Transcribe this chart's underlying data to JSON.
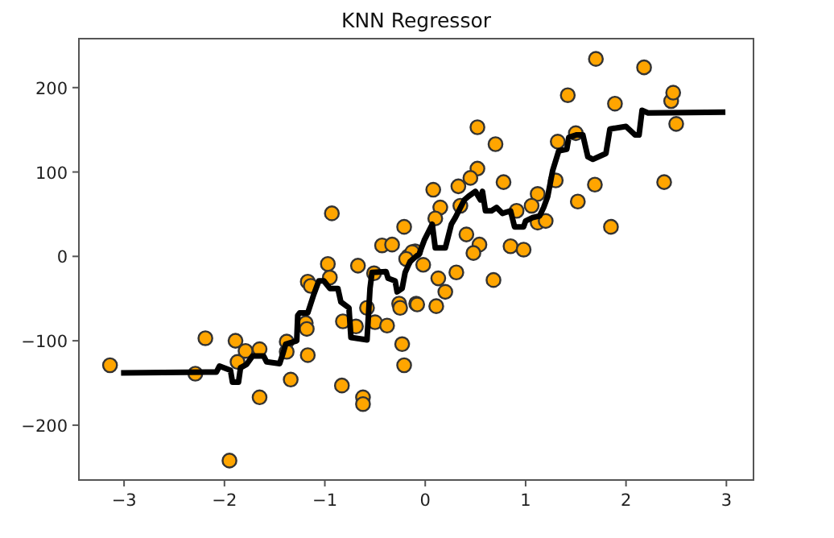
{
  "chart_data": {
    "type": "scatter",
    "title": "KNN Regressor",
    "xlim": [
      -3.45,
      3.27
    ],
    "ylim": [
      -265,
      258
    ],
    "xticks": [
      -3,
      -2,
      -1,
      0,
      1,
      2,
      3
    ],
    "yticks": [
      -200,
      -100,
      0,
      100,
      200
    ],
    "grid": false,
    "marker": "circle",
    "series": [
      {
        "color": "#ffa500",
        "x": [
          -3.14,
          -2.19,
          -2.29,
          -1.89,
          -1.87,
          -1.79,
          -1.65,
          -1.65,
          -1.95,
          -1.38,
          -1.38,
          -1.34,
          -1.17,
          -1.19,
          -1.18,
          -1.17,
          -1.14,
          -0.97,
          -0.95,
          -0.83,
          -0.82,
          -0.69,
          -0.67,
          -0.62,
          -0.62,
          -0.51,
          -0.5,
          -0.43,
          -0.33,
          -0.38,
          -0.23,
          -0.21,
          -0.26,
          -0.25,
          -0.09,
          -0.17,
          -0.1,
          -0.58,
          -0.93,
          -0.21,
          1.7,
          2.18,
          1.42,
          1.89,
          2.45,
          2.47,
          2.5,
          0.52,
          0.7,
          1.32,
          1.5,
          0.52,
          0.45,
          0.33,
          0.08,
          0.78,
          1.3,
          1.69,
          2.38,
          1.12,
          1.52,
          1.06,
          0.91,
          0.35,
          0.15,
          1.85,
          1.12,
          1.2,
          0.85,
          0.98,
          0.54,
          0.41,
          -0.13,
          0.1,
          0.13,
          0.2,
          0.31,
          0.68,
          -0.08,
          0.11,
          0.48,
          -0.02,
          -0.19
        ],
        "values": [
          -129,
          -97,
          -139,
          -100,
          -125,
          -112,
          -110,
          -167,
          -242,
          -101,
          -113,
          -146,
          -117,
          -79,
          -86,
          -30,
          -35,
          -9,
          -25,
          -153,
          -77,
          -83,
          -11,
          -167,
          -175,
          -20,
          -78,
          13,
          14,
          -82,
          -104,
          -129,
          -56,
          -61,
          -56,
          0,
          6,
          -61,
          51,
          35,
          234,
          224,
          191,
          181,
          184,
          194,
          157,
          153,
          133,
          136,
          146,
          104,
          93,
          83,
          79,
          88,
          90,
          85,
          88,
          74,
          65,
          60,
          54,
          60,
          58,
          35,
          40,
          42,
          12,
          8,
          14,
          26,
          5,
          45,
          -26,
          -42,
          -19,
          -28,
          -57,
          -59,
          4,
          -10,
          -3
        ]
      },
      {
        "type": "line",
        "color": "#000000",
        "marker": "none",
        "line_style": "solid",
        "x": [
          -3.03,
          -2.08,
          -2.05,
          -1.94,
          -1.92,
          -1.86,
          -1.84,
          -1.78,
          -1.72,
          -1.61,
          -1.58,
          -1.45,
          -1.42,
          -1.39,
          -1.28,
          -1.27,
          -1.25,
          -1.17,
          -1.11,
          -1.06,
          -1.01,
          -0.95,
          -0.87,
          -0.84,
          -0.76,
          -0.74,
          -0.58,
          -0.55,
          -0.53,
          -0.39,
          -0.37,
          -0.3,
          -0.28,
          -0.23,
          -0.2,
          -0.15,
          -0.06,
          -0.01,
          0.07,
          0.1,
          0.2,
          0.26,
          0.3,
          0.39,
          0.43,
          0.5,
          0.55,
          0.57,
          0.6,
          0.66,
          0.71,
          0.77,
          0.85,
          0.89,
          0.98,
          1.0,
          1.07,
          1.14,
          1.18,
          1.22,
          1.27,
          1.33,
          1.41,
          1.43,
          1.51,
          1.57,
          1.62,
          1.67,
          1.8,
          1.84,
          2.0,
          2.09,
          2.13,
          2.16,
          2.22,
          2.99
        ],
        "values": [
          -138,
          -137,
          -130,
          -135,
          -149,
          -149,
          -132,
          -128,
          -118,
          -118,
          -125,
          -127,
          -116,
          -104,
          -100,
          -70,
          -67,
          -67,
          -45,
          -29,
          -29,
          -38,
          -38,
          -54,
          -61,
          -96,
          -99,
          -38,
          -19,
          -18,
          -26,
          -29,
          -42,
          -38,
          -19,
          -6,
          3,
          19,
          38,
          10,
          10,
          38,
          46,
          67,
          71,
          77,
          67,
          77,
          54,
          54,
          58,
          51,
          54,
          35,
          35,
          42,
          46,
          48,
          58,
          71,
          102,
          125,
          127,
          141,
          144,
          144,
          118,
          115,
          122,
          151,
          154,
          144,
          144,
          173,
          170,
          171
        ]
      }
    ]
  }
}
